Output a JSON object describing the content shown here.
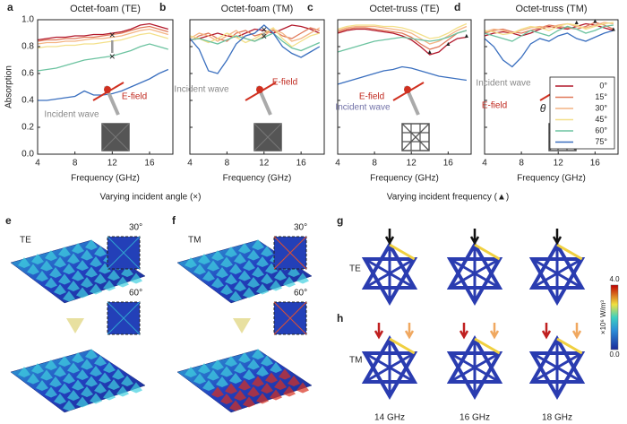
{
  "chart_data": [
    {
      "type": "line",
      "panel": "a",
      "title": "Octet-foam (TE)",
      "xlabel": "Frequency (GHz)",
      "ylabel": "Absorption",
      "x": [
        4,
        5,
        6,
        7,
        8,
        9,
        10,
        11,
        12,
        13,
        14,
        15,
        16,
        17,
        18
      ],
      "xlim": [
        4,
        18.5
      ],
      "ylim": [
        0,
        1
      ],
      "xticks": [
        4,
        8,
        12,
        16
      ],
      "yticks": [
        {
          "value": 0,
          "label": "0.0"
        },
        {
          "value": 0.2,
          "label": "0.2"
        },
        {
          "value": 0.4,
          "label": "0.4"
        },
        {
          "value": 0.6,
          "label": "0.6"
        },
        {
          "value": 0.8,
          "label": "0.8"
        },
        {
          "value": 1,
          "label": "1.0"
        }
      ],
      "series": [
        {
          "color": "#b2182b",
          "values": [
            0.85,
            0.86,
            0.87,
            0.87,
            0.88,
            0.88,
            0.89,
            0.89,
            0.9,
            0.91,
            0.93,
            0.96,
            0.97,
            0.95,
            0.93
          ]
        },
        {
          "color": "#e0795a",
          "values": [
            0.84,
            0.85,
            0.85,
            0.86,
            0.86,
            0.87,
            0.87,
            0.88,
            0.89,
            0.9,
            0.92,
            0.94,
            0.95,
            0.93,
            0.91
          ]
        },
        {
          "color": "#f4b483",
          "values": [
            0.82,
            0.83,
            0.83,
            0.84,
            0.84,
            0.85,
            0.86,
            0.86,
            0.87,
            0.88,
            0.9,
            0.92,
            0.93,
            0.91,
            0.89
          ]
        },
        {
          "color": "#f3e08a",
          "values": [
            0.79,
            0.8,
            0.8,
            0.81,
            0.81,
            0.82,
            0.82,
            0.83,
            0.84,
            0.85,
            0.87,
            0.89,
            0.9,
            0.88,
            0.86
          ]
        },
        {
          "color": "#6cc3a0",
          "values": [
            0.62,
            0.63,
            0.64,
            0.66,
            0.68,
            0.7,
            0.71,
            0.72,
            0.73,
            0.75,
            0.77,
            0.8,
            0.82,
            0.8,
            0.78
          ]
        },
        {
          "color": "#3a6fbf",
          "values": [
            0.4,
            0.4,
            0.41,
            0.42,
            0.43,
            0.47,
            0.44,
            0.44,
            0.45,
            0.47,
            0.5,
            0.53,
            0.56,
            0.6,
            0.63
          ]
        }
      ],
      "markers": {
        "symbol": "×",
        "points": [
          {
            "x": 12,
            "y": 0.88
          },
          {
            "x": 12,
            "y": 0.72
          }
        ]
      },
      "annotations": [
        {
          "text": "E-field",
          "color": "#c0281e"
        },
        {
          "text": "Incident wave",
          "color": "#888888"
        }
      ]
    },
    {
      "type": "line",
      "panel": "b",
      "title": "Octet-foam (TM)",
      "xlabel": "Frequency (GHz)",
      "x": [
        4,
        5,
        6,
        7,
        8,
        9,
        10,
        11,
        12,
        13,
        14,
        15,
        16,
        17,
        18
      ],
      "xlim": [
        4,
        18.5
      ],
      "ylim": [
        0,
        1
      ],
      "xticks": [
        4,
        8,
        12,
        16
      ],
      "yticks": [
        0,
        0.2,
        0.4,
        0.6,
        0.8,
        1
      ],
      "series": [
        {
          "color": "#b2182b",
          "values": [
            0.85,
            0.86,
            0.88,
            0.9,
            0.88,
            0.87,
            0.9,
            0.93,
            0.92,
            0.9,
            0.93,
            0.96,
            0.95,
            0.93,
            0.9
          ]
        },
        {
          "color": "#e0795a",
          "values": [
            0.84,
            0.88,
            0.9,
            0.86,
            0.84,
            0.9,
            0.92,
            0.88,
            0.9,
            0.92,
            0.88,
            0.86,
            0.9,
            0.94,
            0.92
          ]
        },
        {
          "color": "#f4b483",
          "values": [
            0.86,
            0.9,
            0.88,
            0.84,
            0.88,
            0.92,
            0.86,
            0.84,
            0.88,
            0.93,
            0.9,
            0.84,
            0.86,
            0.9,
            0.94
          ]
        },
        {
          "color": "#f3e08a",
          "values": [
            0.88,
            0.86,
            0.83,
            0.86,
            0.9,
            0.87,
            0.83,
            0.86,
            0.9,
            0.94,
            0.86,
            0.8,
            0.84,
            0.88,
            0.9
          ]
        },
        {
          "color": "#6cc3a0",
          "values": [
            0.85,
            0.86,
            0.84,
            0.82,
            0.85,
            0.88,
            0.86,
            0.84,
            0.87,
            0.9,
            0.84,
            0.79,
            0.77,
            0.8,
            0.83
          ]
        },
        {
          "color": "#3a6fbf",
          "values": [
            0.86,
            0.78,
            0.62,
            0.6,
            0.7,
            0.82,
            0.88,
            0.9,
            0.96,
            0.9,
            0.8,
            0.75,
            0.72,
            0.76,
            0.8
          ]
        }
      ],
      "markers": {
        "symbol": "×",
        "points": [
          {
            "x": 12,
            "y": 0.92
          },
          {
            "x": 12,
            "y": 0.87
          }
        ]
      },
      "annotations": [
        {
          "text": "Incident wave",
          "color": "#888888"
        },
        {
          "text": "E-field",
          "color": "#c0281e"
        }
      ]
    },
    {
      "type": "line",
      "panel": "c",
      "title": "Octet-truss (TE)",
      "xlabel": "Frequency (GHz)",
      "x": [
        4,
        5,
        6,
        7,
        8,
        9,
        10,
        11,
        12,
        13,
        14,
        15,
        16,
        17,
        18
      ],
      "xlim": [
        4,
        18.5
      ],
      "ylim": [
        0,
        1
      ],
      "xticks": [
        4,
        8,
        12,
        16
      ],
      "yticks": [
        0,
        0.2,
        0.4,
        0.6,
        0.8,
        1
      ],
      "series": [
        {
          "color": "#b2182b",
          "values": [
            0.9,
            0.92,
            0.93,
            0.93,
            0.92,
            0.91,
            0.9,
            0.88,
            0.85,
            0.8,
            0.74,
            0.76,
            0.82,
            0.86,
            0.87
          ]
        },
        {
          "color": "#e0795a",
          "values": [
            0.91,
            0.93,
            0.94,
            0.94,
            0.93,
            0.92,
            0.91,
            0.9,
            0.87,
            0.82,
            0.78,
            0.8,
            0.85,
            0.9,
            0.92
          ]
        },
        {
          "color": "#f4b483",
          "values": [
            0.92,
            0.94,
            0.95,
            0.95,
            0.95,
            0.94,
            0.93,
            0.92,
            0.9,
            0.86,
            0.82,
            0.84,
            0.88,
            0.92,
            0.95
          ]
        },
        {
          "color": "#f3e08a",
          "values": [
            0.93,
            0.95,
            0.96,
            0.96,
            0.96,
            0.95,
            0.95,
            0.94,
            0.92,
            0.89,
            0.86,
            0.87,
            0.9,
            0.94,
            0.97
          ]
        },
        {
          "color": "#6cc3a0",
          "values": [
            0.76,
            0.78,
            0.8,
            0.82,
            0.84,
            0.85,
            0.86,
            0.87,
            0.86,
            0.85,
            0.84,
            0.85,
            0.87,
            0.9,
            0.92
          ]
        },
        {
          "color": "#3a6fbf",
          "values": [
            0.52,
            0.54,
            0.56,
            0.58,
            0.6,
            0.62,
            0.63,
            0.65,
            0.64,
            0.62,
            0.6,
            0.58,
            0.57,
            0.56,
            0.55
          ]
        }
      ],
      "markers": {
        "symbol": "▲",
        "points": [
          {
            "x": 14,
            "y": 0.76
          },
          {
            "x": 16,
            "y": 0.82
          },
          {
            "x": 18,
            "y": 0.88
          }
        ]
      },
      "annotations": [
        {
          "text": "E-field",
          "color": "#c0281e"
        },
        {
          "text": "Incident wave",
          "color": "#7272a8"
        }
      ]
    },
    {
      "type": "line",
      "panel": "d",
      "title": "Octet-truss (TM)",
      "xlabel": "Frequency (GHz)",
      "x": [
        4,
        5,
        6,
        7,
        8,
        9,
        10,
        11,
        12,
        13,
        14,
        15,
        16,
        17,
        18
      ],
      "xlim": [
        4,
        18.5
      ],
      "ylim": [
        0,
        1
      ],
      "xticks": [
        4,
        8,
        12,
        16
      ],
      "yticks": [
        0,
        0.2,
        0.4,
        0.6,
        0.8,
        1
      ],
      "legend_title": "θ",
      "series": [
        {
          "name": "0°",
          "color": "#b2182b",
          "values": [
            0.88,
            0.9,
            0.91,
            0.9,
            0.88,
            0.9,
            0.93,
            0.95,
            0.94,
            0.93,
            0.95,
            0.97,
            0.96,
            0.94,
            0.92
          ]
        },
        {
          "name": "15°",
          "color": "#e0795a",
          "values": [
            0.9,
            0.92,
            0.93,
            0.91,
            0.9,
            0.92,
            0.94,
            0.96,
            0.95,
            0.94,
            0.93,
            0.95,
            0.98,
            0.96,
            0.93
          ]
        },
        {
          "name": "30°",
          "color": "#f4b483",
          "values": [
            0.91,
            0.93,
            0.92,
            0.9,
            0.92,
            0.94,
            0.95,
            0.94,
            0.96,
            0.97,
            0.95,
            0.94,
            0.96,
            0.98,
            0.97
          ]
        },
        {
          "name": "45°",
          "color": "#f3e08a",
          "values": [
            0.92,
            0.91,
            0.89,
            0.9,
            0.93,
            0.95,
            0.94,
            0.92,
            0.95,
            0.97,
            0.96,
            0.93,
            0.95,
            0.97,
            0.98
          ]
        },
        {
          "name": "60°",
          "color": "#6cc3a0",
          "values": [
            0.9,
            0.88,
            0.86,
            0.84,
            0.88,
            0.92,
            0.9,
            0.88,
            0.92,
            0.95,
            0.93,
            0.9,
            0.92,
            0.95,
            0.96
          ]
        },
        {
          "name": "75°",
          "color": "#3a6fbf",
          "values": [
            0.86,
            0.8,
            0.7,
            0.65,
            0.72,
            0.82,
            0.86,
            0.84,
            0.88,
            0.9,
            0.86,
            0.84,
            0.87,
            0.9,
            0.92
          ]
        }
      ],
      "markers": {
        "symbol": "▲",
        "points": [
          {
            "x": 14,
            "y": 0.98
          },
          {
            "x": 16,
            "y": 0.99
          },
          {
            "x": 18,
            "y": 0.93
          }
        ]
      },
      "annotations": [
        {
          "text": "Incident wave",
          "color": "#888888"
        },
        {
          "text": "E-field",
          "color": "#c0281e"
        }
      ]
    }
  ],
  "captions": [
    "Varying incident angle (×)",
    "Varying incident frequency (▲)"
  ],
  "panels": {
    "e": {
      "label": "e",
      "mode": "TE",
      "angles": [
        "30°",
        "60°"
      ]
    },
    "f": {
      "label": "f",
      "mode": "TM",
      "angles": [
        "30°",
        "60°"
      ]
    },
    "g": {
      "label": "g",
      "mode": "TE"
    },
    "h": {
      "label": "h",
      "mode": "TM"
    },
    "frequencies": [
      "14 GHz",
      "16 GHz",
      "18 GHz"
    ],
    "colorbar": {
      "max": "4.0",
      "min": "0.0",
      "unit": "×10⁶ W/m³"
    }
  }
}
